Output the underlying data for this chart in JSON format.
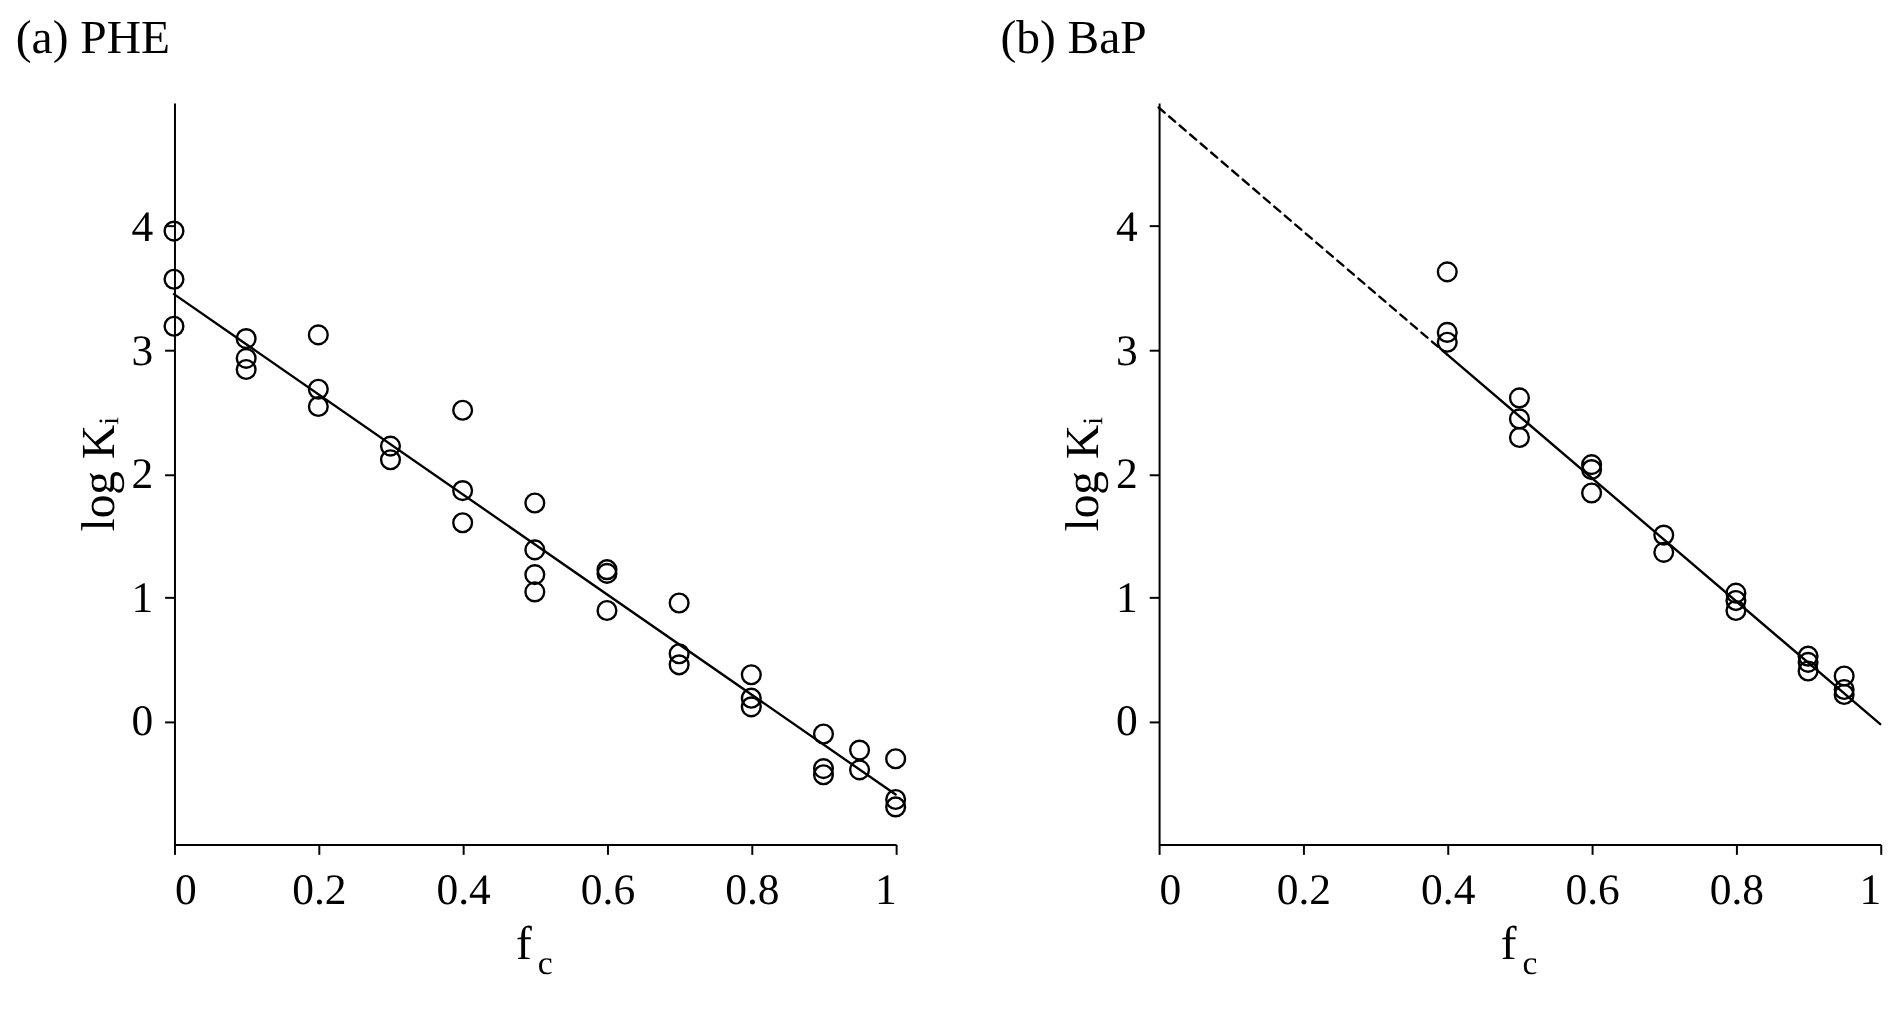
{
  "chart_data": [
    {
      "type": "scatter",
      "title": "(a) PHE",
      "xlabel": "f$_{c}$",
      "ylabel": "log Kᵢ",
      "xlim": [
        0,
        1
      ],
      "ylim": [
        -1,
        5
      ],
      "xticks": [
        0,
        0.2,
        0.4,
        0.6,
        0.8,
        1
      ],
      "yticks": [
        0,
        1,
        2,
        3,
        4
      ],
      "grid": false,
      "series": [
        {
          "marker": "circle",
          "color": "#000000",
          "x": [
            0,
            0,
            0,
            0.1,
            0.1,
            0.1,
            0.2,
            0.2,
            0.2,
            0.3,
            0.3,
            0.4,
            0.4,
            0.4,
            0.5,
            0.5,
            0.5,
            0.5,
            0.6,
            0.6,
            0.6,
            0.7,
            0.7,
            0.7,
            0.8,
            0.8,
            0.8,
            0.9,
            0.9,
            0.9,
            0.95,
            0.95,
            1,
            1,
            1
          ],
          "values": [
            3.96,
            3.57,
            3.19,
            3.09,
            2.93,
            2.84,
            3.12,
            2.68,
            2.54,
            2.22,
            2.11,
            2.51,
            1.86,
            1.6,
            1.76,
            1.38,
            1.18,
            1.04,
            1.22,
            1.19,
            0.89,
            0.95,
            0.54,
            0.45,
            0.37,
            0.18,
            0.11,
            -0.11,
            -0.39,
            -0.44,
            -0.24,
            -0.4,
            -0.31,
            -0.64,
            -0.7
          ]
        },
        {
          "type": "line",
          "marker": "none",
          "line_style": "solid",
          "color": "#000000",
          "x": [
            0,
            1
          ],
          "values": [
            3.45,
            -0.6
          ]
        }
      ]
    },
    {
      "type": "scatter",
      "title": "(b) BaP",
      "xlabel": "f$_{c}$",
      "ylabel": "log Kᵢ",
      "xlim": [
        0,
        1
      ],
      "ylim": [
        -1,
        5
      ],
      "xticks": [
        0,
        0.2,
        0.4,
        0.6,
        0.8,
        1
      ],
      "yticks": [
        0,
        1,
        2,
        3,
        4
      ],
      "grid": false,
      "series": [
        {
          "marker": "circle",
          "color": "#000000",
          "x": [
            0.4,
            0.4,
            0.4,
            0.5,
            0.5,
            0.5,
            0.6,
            0.6,
            0.6,
            0.7,
            0.7,
            0.8,
            0.8,
            0.8,
            0.9,
            0.9,
            0.9,
            0.95,
            0.95,
            0.95
          ],
          "values": [
            3.63,
            3.14,
            3.06,
            2.61,
            2.44,
            2.29,
            2.07,
            2.03,
            1.84,
            1.5,
            1.36,
            1.03,
            0.97,
            0.89,
            0.52,
            0.47,
            0.4,
            0.36,
            0.25,
            0.21
          ]
        },
        {
          "type": "line",
          "marker": "none",
          "line_style": "dashed",
          "color": "#000000",
          "x": [
            0,
            0.4
          ],
          "values": [
            4.96,
            2.96
          ]
        },
        {
          "type": "line",
          "marker": "none",
          "line_style": "solid",
          "color": "#000000",
          "x": [
            0.4,
            1
          ],
          "values": [
            2.96,
            -0.03
          ]
        }
      ]
    }
  ]
}
